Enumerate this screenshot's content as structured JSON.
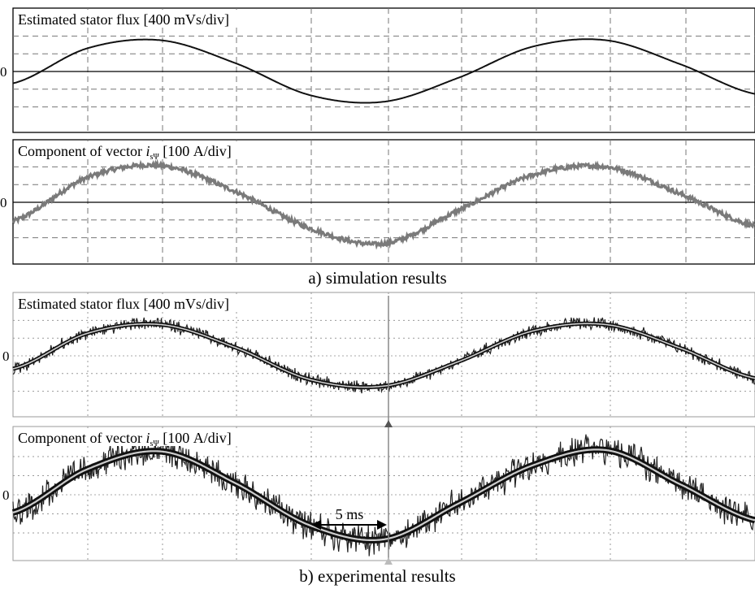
{
  "chart_data": [
    {
      "type": "line",
      "panel": "a",
      "title": "Estimated stator flux [400 mVs/div]",
      "zero_label": "0",
      "x": [
        0,
        2.5,
        5.0,
        7.5,
        10,
        12.5,
        15,
        17.5,
        20,
        22.5,
        25
      ],
      "series": [
        {
          "values": [
            -0.5,
            0.98,
            1.32,
            0.35,
            -1.0,
            -1.28,
            -0.27,
            1.05,
            1.32,
            0.3,
            -0.95
          ]
        }
      ],
      "ylim": [
        -2.5,
        2.5
      ],
      "grid": true
    },
    {
      "type": "line",
      "panel": "a",
      "title": "Component of vector i_sΨ [100 A/div]",
      "zero_label": "0",
      "x": [
        0,
        2.5,
        5.0,
        7.5,
        10,
        12.5,
        15,
        17.5,
        20,
        22.5,
        25
      ],
      "series": [
        {
          "values": [
            -0.8,
            1.05,
            1.55,
            0.45,
            -1.1,
            -1.75,
            -0.35,
            1.15,
            1.5,
            0.35,
            -1.0
          ]
        }
      ],
      "ylim": [
        -2.5,
        2.5
      ],
      "grid": true
    },
    {
      "type": "line",
      "panel": "b",
      "title": "Estimated stator flux [400 mVs/div]",
      "zero_label": "0",
      "x": [
        0,
        2.5,
        5.0,
        7.5,
        10,
        12.5,
        15,
        17.5,
        20,
        22.5,
        25
      ],
      "series": [
        {
          "values": [
            -0.55,
            0.95,
            1.32,
            0.35,
            -1.0,
            -1.28,
            -0.25,
            1.05,
            1.32,
            0.32,
            -0.95
          ]
        }
      ],
      "ylim": [
        -2.5,
        2.5
      ],
      "grid": true
    },
    {
      "type": "line",
      "panel": "b",
      "title": "Component of vector i_sΨ [100 A/div]",
      "zero_label": "0",
      "x": [
        0,
        2.5,
        5.0,
        7.5,
        10,
        12.5,
        15,
        17.5,
        20,
        22.5,
        25
      ],
      "series": [
        {
          "values": [
            -0.7,
            1.0,
            1.7,
            0.45,
            -1.2,
            -1.75,
            -0.35,
            1.15,
            1.75,
            0.4,
            -1.0
          ]
        }
      ],
      "ylim": [
        -2.5,
        2.5
      ],
      "grid": true
    }
  ],
  "captions": {
    "a": "a) simulation results",
    "b": "b) experimental results"
  },
  "title_parts": {
    "flux": "Estimated stator flux [400 mVs/div]",
    "comp_pre": "Component of vector",
    "comp_sym": "i",
    "comp_sub": "sΨ",
    "comp_post": "[100 A/div]"
  },
  "annotation": {
    "time_span": "5 ms"
  }
}
